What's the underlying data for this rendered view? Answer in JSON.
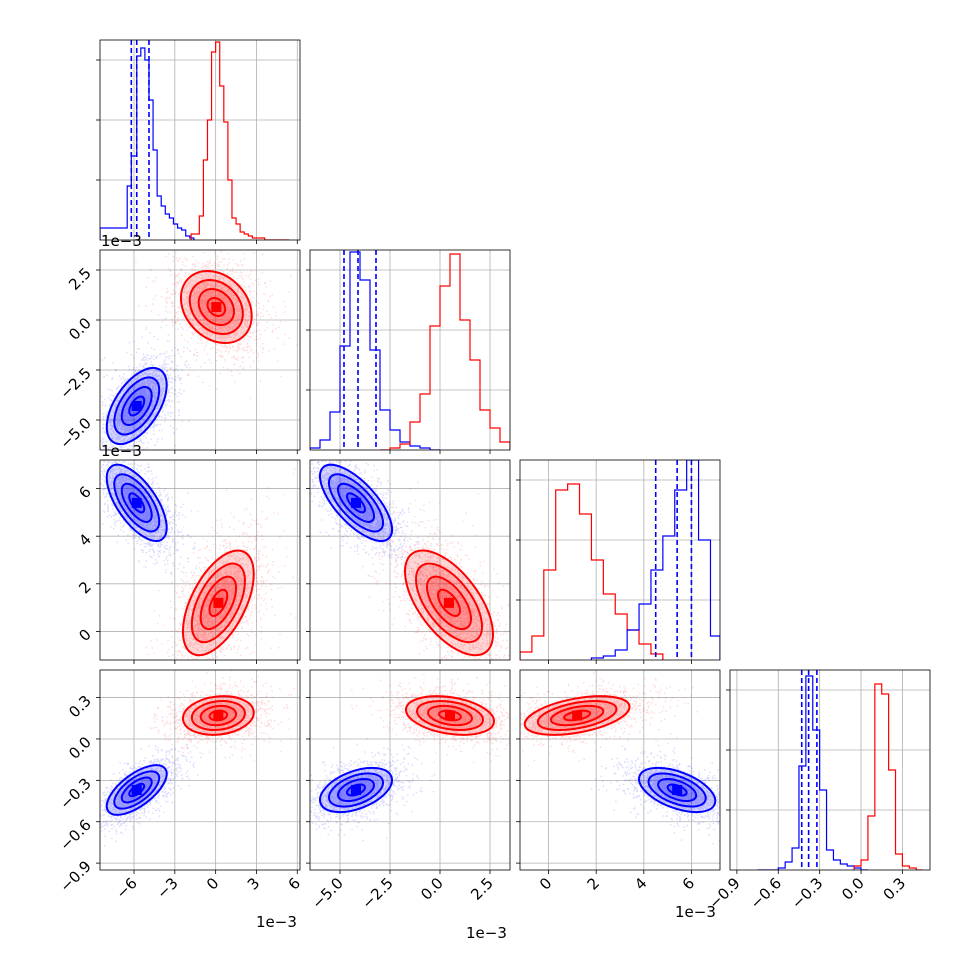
{
  "figure": {
    "type": "corner",
    "exponent_label": "1e−3",
    "colors": {
      "blue": "#0000ff",
      "red": "#ff0000",
      "grid": "#b0b0b0"
    }
  },
  "chart_data": [
    {
      "type": "histogram",
      "panel": "p00",
      "param_index": 0,
      "xlim": [
        -0.0085,
        0.0062
      ],
      "xticks": [
        -0.006,
        -0.003,
        0.0,
        0.003,
        0.006
      ],
      "quantiles": {
        "blue": [
          -0.0062,
          -0.0058,
          -0.0049
        ]
      },
      "series": [
        {
          "color": "#0000ff",
          "edges": [
            -0.0085,
            -0.0065,
            -0.0062,
            -0.0058,
            -0.0055,
            -0.0052,
            -0.0049,
            -0.0046,
            -0.0043,
            -0.004,
            -0.0037,
            -0.0034,
            -0.0031,
            -0.0028,
            -0.0025,
            -0.0022,
            -0.0019,
            -0.0016
          ],
          "heights": [
            0.06,
            0.27,
            0.42,
            0.92,
            0.96,
            0.9,
            0.7,
            0.45,
            0.22,
            0.17,
            0.13,
            0.11,
            0.08,
            0.06,
            0.05,
            0.02,
            0.01
          ]
        },
        {
          "color": "#ff0000",
          "edges": [
            -0.0018,
            -0.0012,
            -0.0009,
            -0.0006,
            -0.0003,
            0.0,
            0.0003,
            0.0006,
            0.0009,
            0.0012,
            0.0015,
            0.0018,
            0.0021,
            0.0024,
            0.0027,
            0.003,
            0.0033,
            0.0036,
            0.0039,
            0.0042,
            0.0045,
            0.0048,
            0.0054
          ],
          "heights": [
            0.03,
            0.12,
            0.4,
            0.6,
            0.94,
            0.99,
            0.77,
            0.59,
            0.3,
            0.11,
            0.08,
            0.04,
            0.03,
            0.02,
            0.01,
            0.01,
            0.01,
            0.0,
            0.0,
            0.0,
            0.0,
            0.0
          ]
        }
      ]
    },
    {
      "type": "histogram",
      "panel": "p11",
      "param_index": 1,
      "xlim": [
        -0.0065,
        0.0035
      ],
      "xticks": [
        -0.005,
        -0.0025,
        0.0,
        0.0025
      ],
      "quantiles": {
        "blue": [
          -0.0048,
          -0.0041,
          -0.0032
        ]
      },
      "series": [
        {
          "color": "#0000ff",
          "edges": [
            -0.0065,
            -0.006,
            -0.0055,
            -0.005,
            -0.0045,
            -0.004,
            -0.0035,
            -0.003,
            -0.0025,
            -0.002,
            -0.0015,
            -0.001,
            -0.0005,
            0.0
          ],
          "heights": [
            0.01,
            0.05,
            0.19,
            0.52,
            0.99,
            0.85,
            0.5,
            0.2,
            0.1,
            0.04,
            0.02,
            0.01,
            0.0
          ]
        },
        {
          "color": "#ff0000",
          "edges": [
            -0.003,
            -0.0025,
            -0.002,
            -0.0015,
            -0.001,
            -0.0005,
            0.0,
            0.0005,
            0.001,
            0.0015,
            0.002,
            0.0025,
            0.003,
            0.0035
          ],
          "heights": [
            0.0,
            0.01,
            0.03,
            0.14,
            0.28,
            0.62,
            0.82,
            0.98,
            0.65,
            0.45,
            0.2,
            0.11,
            0.04
          ]
        }
      ]
    },
    {
      "type": "histogram",
      "panel": "p22",
      "param_index": 2,
      "xlim": [
        -0.0012,
        0.0072
      ],
      "xticks": [
        0,
        0.002,
        0.004,
        0.006
      ],
      "quantiles": {
        "blue": [
          0.0045,
          0.0054,
          0.006
        ]
      },
      "series": [
        {
          "color": "#ff0000",
          "edges": [
            -0.0012,
            -0.0007,
            -0.0002,
            0.0003,
            0.0008,
            0.0013,
            0.0018,
            0.0023,
            0.0028,
            0.0033,
            0.0038,
            0.0043,
            0.0048
          ],
          "heights": [
            0.04,
            0.12,
            0.45,
            0.85,
            0.88,
            0.73,
            0.5,
            0.33,
            0.23,
            0.15,
            0.08,
            0.03
          ]
        },
        {
          "color": "#0000ff",
          "edges": [
            0.0018,
            0.0023,
            0.0028,
            0.0033,
            0.0038,
            0.0043,
            0.0048,
            0.0053,
            0.0058,
            0.0063,
            0.0068,
            0.0072
          ],
          "heights": [
            0.01,
            0.02,
            0.05,
            0.15,
            0.28,
            0.45,
            0.62,
            0.85,
            1.0,
            0.6,
            0.12
          ]
        }
      ]
    },
    {
      "type": "histogram",
      "panel": "p33",
      "param_index": 3,
      "xlim": [
        -0.95,
        0.5
      ],
      "xticks": [
        -0.9,
        -0.6,
        -0.3,
        0.0,
        0.3
      ],
      "quantiles": {
        "blue": [
          -0.43,
          -0.38,
          -0.32
        ]
      },
      "series": [
        {
          "color": "#0000ff",
          "edges": [
            -0.75,
            -0.6,
            -0.55,
            -0.5,
            -0.45,
            -0.4,
            -0.35,
            -0.3,
            -0.25,
            -0.2,
            -0.15,
            -0.1,
            -0.05,
            0.0,
            0.05
          ],
          "heights": [
            0.0,
            0.01,
            0.04,
            0.11,
            0.52,
            0.97,
            0.7,
            0.4,
            0.1,
            0.05,
            0.03,
            0.02,
            0.01,
            0.0
          ]
        },
        {
          "color": "#ff0000",
          "edges": [
            -0.05,
            0.0,
            0.05,
            0.1,
            0.15,
            0.2,
            0.25,
            0.3,
            0.35,
            0.4,
            0.45
          ],
          "heights": [
            0.02,
            0.05,
            0.27,
            0.93,
            0.88,
            0.5,
            0.08,
            0.02,
            0.01,
            0.0
          ]
        }
      ]
    },
    {
      "type": "scatter",
      "panel": "p10",
      "x_param": 0,
      "y_param": 1,
      "xlim": [
        -0.0085,
        0.0062
      ],
      "ylim": [
        -0.0065,
        0.0035
      ],
      "yticks": [
        -0.005,
        -0.0025,
        0.0,
        0.0025
      ],
      "series": [
        {
          "color": "#0000ff",
          "center": [
            -0.0058,
            -0.0043
          ],
          "sd": [
            0.0011,
            0.00095
          ],
          "corr": 0.55,
          "n": 2200
        },
        {
          "color": "#ff0000",
          "center": [
            5e-05,
            0.00065
          ],
          "sd": [
            0.0013,
            0.0009
          ],
          "corr": -0.25,
          "n": 2200
        }
      ]
    },
    {
      "type": "scatter",
      "panel": "p20",
      "x_param": 0,
      "y_param": 2,
      "xlim": [
        -0.0085,
        0.0062
      ],
      "ylim": [
        -0.0012,
        0.0072
      ],
      "yticks": [
        0,
        0.002,
        0.004,
        0.006
      ],
      "series": [
        {
          "color": "#0000ff",
          "center": [
            -0.0058,
            0.0054
          ],
          "sd": [
            0.0011,
            0.0008
          ],
          "corr": -0.65,
          "n": 2200
        },
        {
          "color": "#ff0000",
          "center": [
            0.0002,
            0.0012
          ],
          "sd": [
            0.0013,
            0.0011
          ],
          "corr": 0.55,
          "n": 2200
        }
      ]
    },
    {
      "type": "scatter",
      "panel": "p21",
      "x_param": 1,
      "y_param": 2,
      "xlim": [
        -0.0065,
        0.0035
      ],
      "ylim": [
        -0.0012,
        0.0072
      ],
      "series": [
        {
          "color": "#0000ff",
          "center": [
            -0.0042,
            0.0054
          ],
          "sd": [
            0.0009,
            0.0008
          ],
          "corr": -0.7,
          "n": 2200
        },
        {
          "color": "#ff0000",
          "center": [
            0.00045,
            0.0012
          ],
          "sd": [
            0.0011,
            0.0011
          ],
          "corr": -0.6,
          "n": 2200
        }
      ]
    },
    {
      "type": "scatter",
      "panel": "p30",
      "x_param": 0,
      "y_param": 3,
      "xlim": [
        -0.0085,
        0.0062
      ],
      "ylim": [
        -0.95,
        0.5
      ],
      "yticks": [
        -0.9,
        -0.6,
        -0.3,
        0.0,
        0.3
      ],
      "series": [
        {
          "color": "#0000ff",
          "center": [
            -0.0058,
            -0.37
          ],
          "sd": [
            0.0011,
            0.09
          ],
          "corr": 0.65,
          "n": 2200
        },
        {
          "color": "#ff0000",
          "center": [
            0.0002,
            0.17
          ],
          "sd": [
            0.0013,
            0.07
          ],
          "corr": 0.15,
          "n": 2200
        }
      ]
    },
    {
      "type": "scatter",
      "panel": "p31",
      "x_param": 1,
      "y_param": 3,
      "xlim": [
        -0.0065,
        0.0035
      ],
      "ylim": [
        -0.95,
        0.5
      ],
      "series": [
        {
          "color": "#0000ff",
          "center": [
            -0.0042,
            -0.37
          ],
          "sd": [
            0.0009,
            0.08
          ],
          "corr": 0.45,
          "n": 2200
        },
        {
          "color": "#ff0000",
          "center": [
            0.0005,
            0.17
          ],
          "sd": [
            0.0011,
            0.07
          ],
          "corr": -0.3,
          "n": 2200
        }
      ]
    },
    {
      "type": "scatter",
      "panel": "p32",
      "x_param": 2,
      "y_param": 3,
      "xlim": [
        -0.0012,
        0.0072
      ],
      "ylim": [
        -0.95,
        0.5
      ],
      "series": [
        {
          "color": "#0000ff",
          "center": [
            0.0054,
            -0.37
          ],
          "sd": [
            0.0008,
            0.08
          ],
          "corr": -0.5,
          "n": 2200
        },
        {
          "color": "#ff0000",
          "center": [
            0.0012,
            0.17
          ],
          "sd": [
            0.0011,
            0.07
          ],
          "corr": 0.45,
          "n": 2200
        }
      ]
    }
  ],
  "tick_labels": {
    "x0": [
      "−6",
      "−3",
      "0",
      "3",
      "6"
    ],
    "x1": [
      "−5.0",
      "−2.5",
      "0.0",
      "2.5"
    ],
    "x2": [
      "0",
      "2",
      "4",
      "6"
    ],
    "x3": [
      "−0.9",
      "−0.6",
      "−0.3",
      "0.0",
      "0.3"
    ],
    "y1": [
      "−5.0",
      "−2.5",
      "0.0",
      "2.5"
    ],
    "y2": [
      "0",
      "2",
      "4",
      "6"
    ],
    "y3": [
      "−0.9",
      "−0.6",
      "−0.3",
      "0.0",
      "0.3"
    ]
  }
}
